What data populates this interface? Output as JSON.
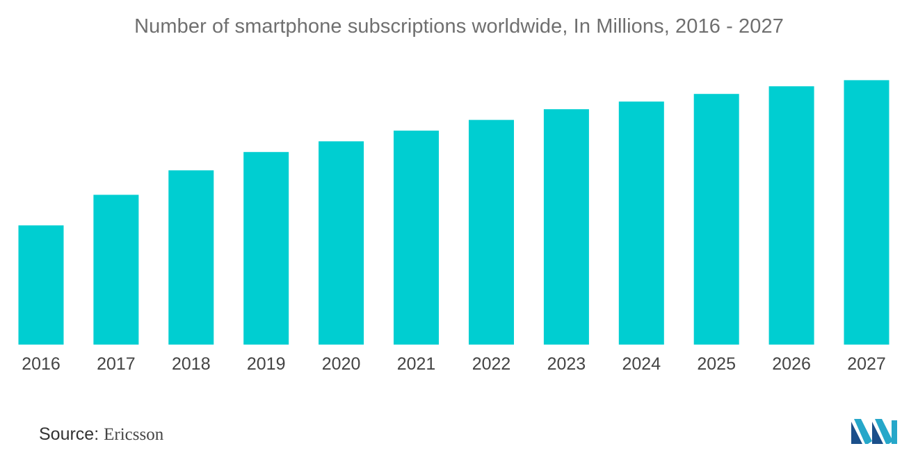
{
  "colors": {
    "bar": "#00CED1",
    "title": "#6f6f6f",
    "tick": "#444444"
  },
  "source": {
    "label": "Source:",
    "value": "Ericsson"
  },
  "logo_icon": "mordor-intelligence-logo",
  "chart_data": {
    "type": "bar",
    "title": "Number of smartphone subscriptions worldwide, In Millions, 2016 - 2027",
    "xlabel": "",
    "ylabel": "",
    "categories": [
      "2016",
      "2017",
      "2018",
      "2019",
      "2020",
      "2021",
      "2022",
      "2023",
      "2024",
      "2025",
      "2026",
      "2027"
    ],
    "values": [
      3900,
      4900,
      5700,
      6300,
      6650,
      7000,
      7350,
      7700,
      7950,
      8200,
      8450,
      8650
    ],
    "ylim": [
      0,
      9000
    ],
    "grid": false,
    "legend": "none"
  }
}
